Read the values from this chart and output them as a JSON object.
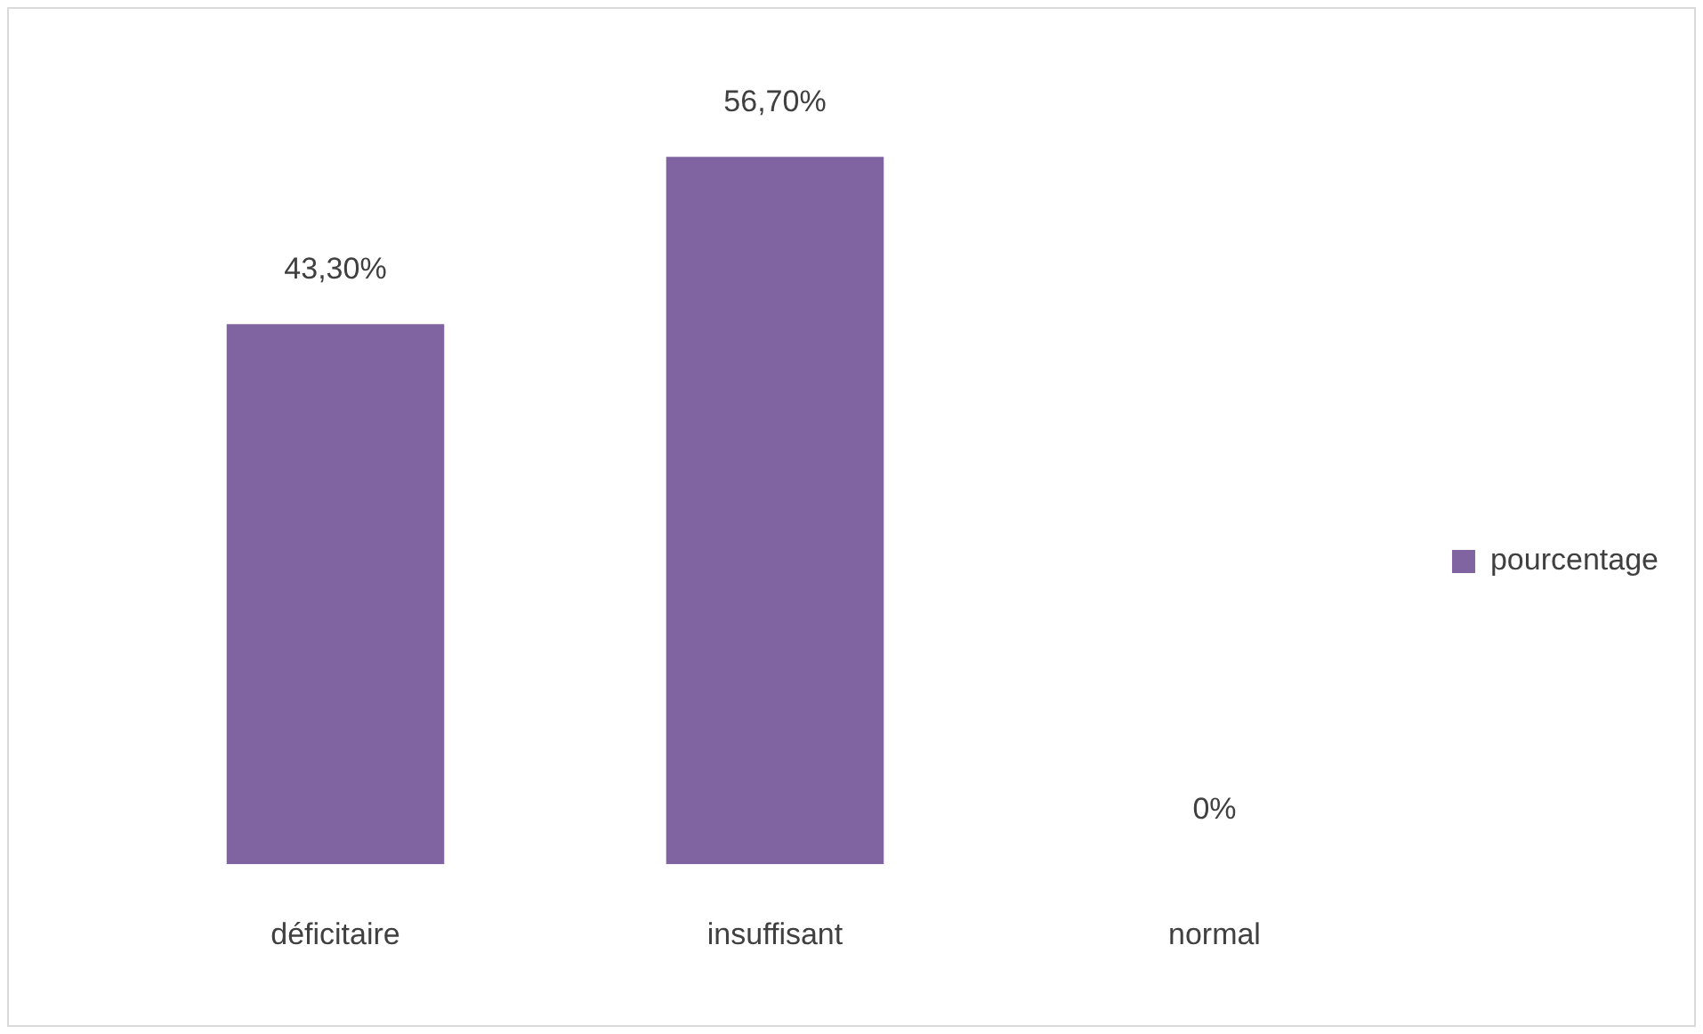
{
  "chart_data": {
    "type": "bar",
    "categories": [
      "déficitaire",
      "insuffisant",
      "normal"
    ],
    "series": [
      {
        "name": "pourcentage",
        "color": "#8064a2",
        "values": [
          43.3,
          56.7,
          0
        ],
        "value_labels": [
          "43,30%",
          "56,70%",
          "0%"
        ]
      }
    ],
    "grid": false,
    "legend": "right",
    "tick_labels": "x"
  }
}
